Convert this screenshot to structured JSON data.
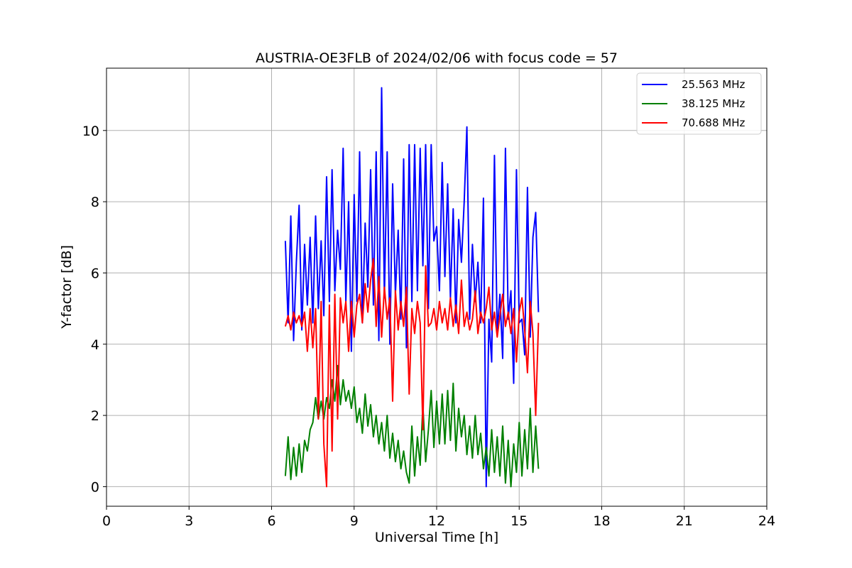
{
  "chart_data": {
    "type": "line",
    "title": "AUSTRIA-OE3FLB of 2024/02/06 with focus code = 57",
    "xlabel": "Universal Time [h]",
    "ylabel": "Y-factor [dB]",
    "xlim": [
      0,
      24
    ],
    "ylim": [
      -0.55,
      11.75
    ],
    "xticks": [
      0,
      3,
      6,
      9,
      12,
      15,
      18,
      21,
      24
    ],
    "yticks": [
      0,
      2,
      4,
      6,
      8,
      10
    ],
    "grid": true,
    "legend_position": "top-right",
    "series": [
      {
        "name": "25.563 MHz",
        "color": "#0000ff",
        "x": [
          6.5,
          6.6,
          6.7,
          6.8,
          6.9,
          7.0,
          7.1,
          7.2,
          7.3,
          7.4,
          7.5,
          7.6,
          7.7,
          7.8,
          7.9,
          8.0,
          8.1,
          8.2,
          8.3,
          8.4,
          8.5,
          8.6,
          8.7,
          8.8,
          8.9,
          9.0,
          9.1,
          9.2,
          9.3,
          9.4,
          9.5,
          9.6,
          9.7,
          9.8,
          9.9,
          10.0,
          10.1,
          10.2,
          10.3,
          10.4,
          10.5,
          10.6,
          10.7,
          10.8,
          10.9,
          11.0,
          11.1,
          11.2,
          11.3,
          11.4,
          11.5,
          11.6,
          11.7,
          11.8,
          11.9,
          12.0,
          12.1,
          12.2,
          12.3,
          12.4,
          12.5,
          12.6,
          12.7,
          12.8,
          12.9,
          13.0,
          13.1,
          13.2,
          13.3,
          13.4,
          13.5,
          13.6,
          13.7,
          13.8,
          13.9,
          14.0,
          14.1,
          14.2,
          14.3,
          14.4,
          14.5,
          14.6,
          14.7,
          14.8,
          14.9,
          15.0,
          15.1,
          15.2,
          15.3,
          15.4,
          15.5,
          15.6,
          15.7
        ],
        "values": [
          6.9,
          4.6,
          7.6,
          4.1,
          6.3,
          7.9,
          4.4,
          6.8,
          5.1,
          7.0,
          4.6,
          7.6,
          5.0,
          6.9,
          4.8,
          8.7,
          5.2,
          8.9,
          5.5,
          7.2,
          6.1,
          9.5,
          5.2,
          8.0,
          3.8,
          8.2,
          5.2,
          9.4,
          4.6,
          7.4,
          5.6,
          8.9,
          5.1,
          9.4,
          4.1,
          11.2,
          5.3,
          9.4,
          4.0,
          8.5,
          5.4,
          7.2,
          4.7,
          9.2,
          3.9,
          9.6,
          5.2,
          9.6,
          5.5,
          9.5,
          6.2,
          9.6,
          5.0,
          9.6,
          6.9,
          7.3,
          5.5,
          9.1,
          5.9,
          8.5,
          5.3,
          7.8,
          4.6,
          7.5,
          6.3,
          8.0,
          10.1,
          4.7,
          6.8,
          5.2,
          6.3,
          4.6,
          8.1,
          0.0,
          4.7,
          3.5,
          9.3,
          4.3,
          5.4,
          3.6,
          9.5,
          4.7,
          5.5,
          2.9,
          8.9,
          4.6,
          4.7,
          3.7,
          8.4,
          4.2,
          7.0,
          7.7,
          4.9
        ]
      },
      {
        "name": "38.125 MHz",
        "color": "#008000",
        "x": [
          6.5,
          6.6,
          6.7,
          6.8,
          6.9,
          7.0,
          7.1,
          7.2,
          7.3,
          7.4,
          7.5,
          7.6,
          7.7,
          7.8,
          7.9,
          8.0,
          8.1,
          8.2,
          8.3,
          8.4,
          8.5,
          8.6,
          8.7,
          8.8,
          8.9,
          9.0,
          9.1,
          9.2,
          9.3,
          9.4,
          9.5,
          9.6,
          9.7,
          9.8,
          9.9,
          10.0,
          10.1,
          10.2,
          10.3,
          10.4,
          10.5,
          10.6,
          10.7,
          10.8,
          10.9,
          11.0,
          11.1,
          11.2,
          11.3,
          11.4,
          11.5,
          11.6,
          11.7,
          11.8,
          11.9,
          12.0,
          12.1,
          12.2,
          12.3,
          12.4,
          12.5,
          12.6,
          12.7,
          12.8,
          12.9,
          13.0,
          13.1,
          13.2,
          13.3,
          13.4,
          13.5,
          13.6,
          13.7,
          13.8,
          13.9,
          14.0,
          14.1,
          14.2,
          14.3,
          14.4,
          14.5,
          14.6,
          14.7,
          14.8,
          14.9,
          15.0,
          15.1,
          15.2,
          15.3,
          15.4,
          15.5,
          15.6,
          15.7
        ],
        "values": [
          0.3,
          1.4,
          0.2,
          1.1,
          0.3,
          1.2,
          0.4,
          1.3,
          1.0,
          1.6,
          1.8,
          2.5,
          1.9,
          2.4,
          1.9,
          2.5,
          2.2,
          3.0,
          2.4,
          3.4,
          2.3,
          3.0,
          2.4,
          2.7,
          2.2,
          2.8,
          1.8,
          2.2,
          1.5,
          2.6,
          1.7,
          2.3,
          1.4,
          2.0,
          1.2,
          1.8,
          1.0,
          2.0,
          0.8,
          1.5,
          0.7,
          1.3,
          0.5,
          1.0,
          0.4,
          0.1,
          1.7,
          0.3,
          1.4,
          0.6,
          2.3,
          0.7,
          1.6,
          2.7,
          1.1,
          2.4,
          1.2,
          2.6,
          1.2,
          2.7,
          1.3,
          2.9,
          1.0,
          2.2,
          1.4,
          2.0,
          0.9,
          1.7,
          0.8,
          2.0,
          0.9,
          1.5,
          0.5,
          1.1,
          0.3,
          1.6,
          0.4,
          1.4,
          0.3,
          1.7,
          0.1,
          1.3,
          0.0,
          1.2,
          0.4,
          1.8,
          0.3,
          1.6,
          0.5,
          2.2,
          0.4,
          1.7,
          0.5
        ]
      },
      {
        "name": "70.688 MHz",
        "color": "#ff0000",
        "x": [
          6.5,
          6.6,
          6.7,
          6.8,
          6.9,
          7.0,
          7.1,
          7.2,
          7.3,
          7.4,
          7.5,
          7.6,
          7.7,
          7.8,
          7.9,
          8.0,
          8.1,
          8.2,
          8.3,
          8.4,
          8.5,
          8.6,
          8.7,
          8.8,
          8.9,
          9.0,
          9.1,
          9.2,
          9.3,
          9.4,
          9.5,
          9.6,
          9.7,
          9.8,
          9.9,
          10.0,
          10.1,
          10.2,
          10.3,
          10.4,
          10.5,
          10.6,
          10.7,
          10.8,
          10.9,
          11.0,
          11.1,
          11.2,
          11.3,
          11.4,
          11.5,
          11.6,
          11.7,
          11.8,
          11.9,
          12.0,
          12.1,
          12.2,
          12.3,
          12.4,
          12.5,
          12.6,
          12.7,
          12.8,
          12.9,
          13.0,
          13.1,
          13.2,
          13.3,
          13.4,
          13.5,
          13.6,
          13.7,
          13.8,
          13.9,
          14.0,
          14.1,
          14.2,
          14.3,
          14.4,
          14.5,
          14.6,
          14.7,
          14.8,
          14.9,
          15.0,
          15.1,
          15.2,
          15.3,
          15.4,
          15.5,
          15.6,
          15.7
        ],
        "values": [
          4.5,
          4.8,
          4.4,
          4.9,
          4.6,
          4.8,
          4.5,
          4.9,
          3.8,
          5.0,
          3.9,
          5.0,
          1.9,
          5.2,
          1.2,
          0.0,
          5.1,
          1.0,
          5.4,
          1.9,
          5.3,
          4.6,
          5.2,
          3.8,
          5.2,
          4.2,
          5.1,
          5.4,
          4.6,
          5.7,
          4.9,
          5.8,
          6.4,
          4.5,
          5.9,
          4.2,
          5.6,
          4.7,
          5.3,
          2.4,
          5.5,
          4.4,
          5.2,
          4.5,
          5.6,
          2.6,
          5.0,
          4.3,
          5.2,
          4.6,
          1.6,
          6.2,
          4.5,
          4.6,
          5.0,
          4.4,
          5.2,
          4.6,
          5.0,
          4.4,
          5.3,
          4.5,
          5.1,
          4.3,
          5.8,
          4.5,
          4.9,
          4.4,
          4.7,
          5.5,
          4.3,
          4.9,
          4.6,
          5.0,
          5.6,
          4.4,
          4.9,
          4.2,
          4.8,
          5.4,
          4.5,
          4.9,
          4.3,
          5.0,
          3.5,
          4.9,
          5.3,
          4.4,
          3.2,
          5.2,
          4.3,
          2.0,
          4.6
        ]
      }
    ]
  }
}
